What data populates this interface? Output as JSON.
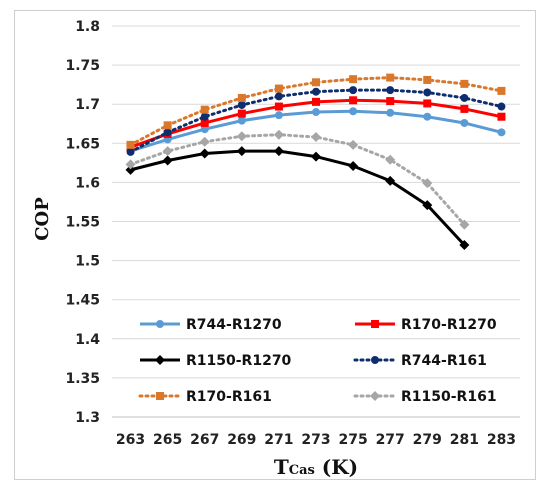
{
  "chart_data": {
    "type": "line",
    "xlabel_main": "T",
    "xlabel_sub": "Cas",
    "xlabel_unit": " (K)",
    "ylabel": "COP",
    "ylim": [
      1.3,
      1.8
    ],
    "yticks": [
      "1.3",
      "1.35",
      "1.4",
      "1.45",
      "1.5",
      "1.55",
      "1.6",
      "1.65",
      "1.7",
      "1.75",
      "1.8"
    ],
    "x": [
      263,
      265,
      267,
      269,
      271,
      273,
      275,
      277,
      279,
      281,
      283
    ],
    "x_labels": [
      "263",
      "265",
      "267",
      "269",
      "271",
      "273",
      "275",
      "277",
      "279",
      "281",
      "283"
    ],
    "grid": "horizontal",
    "legend_placement": "bottom-inside",
    "series": [
      {
        "name": "R744-R1270",
        "color": "#5b9bd5",
        "dash": "solid",
        "marker": "circle",
        "values": [
          1.64,
          1.655,
          1.668,
          1.679,
          1.686,
          1.69,
          1.691,
          1.689,
          1.684,
          1.676,
          1.664
        ]
      },
      {
        "name": "R170-R1270",
        "color": "#ff0000",
        "dash": "solid",
        "marker": "square",
        "values": [
          1.645,
          1.662,
          1.676,
          1.688,
          1.697,
          1.703,
          1.705,
          1.704,
          1.701,
          1.694,
          1.684
        ]
      },
      {
        "name": "R1150-R1270",
        "color": "#000000",
        "dash": "solid",
        "marker": "diamond",
        "values": [
          1.616,
          1.628,
          1.637,
          1.64,
          1.64,
          1.633,
          1.621,
          1.602,
          1.571,
          1.52,
          null
        ]
      },
      {
        "name": "R744-R161",
        "color": "#0d2d6e",
        "dash": "dot",
        "marker": "circle",
        "values": [
          1.639,
          1.664,
          1.684,
          1.699,
          1.71,
          1.716,
          1.718,
          1.718,
          1.715,
          1.708,
          1.697
        ]
      },
      {
        "name": "R170-R161",
        "color": "#d9782d",
        "dash": "dot",
        "marker": "square",
        "values": [
          1.648,
          1.673,
          1.693,
          1.708,
          1.72,
          1.728,
          1.732,
          1.734,
          1.731,
          1.726,
          1.717
        ]
      },
      {
        "name": "R1150-R161",
        "color": "#a6a6a6",
        "dash": "dot",
        "marker": "diamond",
        "values": [
          1.623,
          1.64,
          1.652,
          1.659,
          1.661,
          1.658,
          1.648,
          1.629,
          1.599,
          1.546,
          null
        ]
      }
    ]
  }
}
